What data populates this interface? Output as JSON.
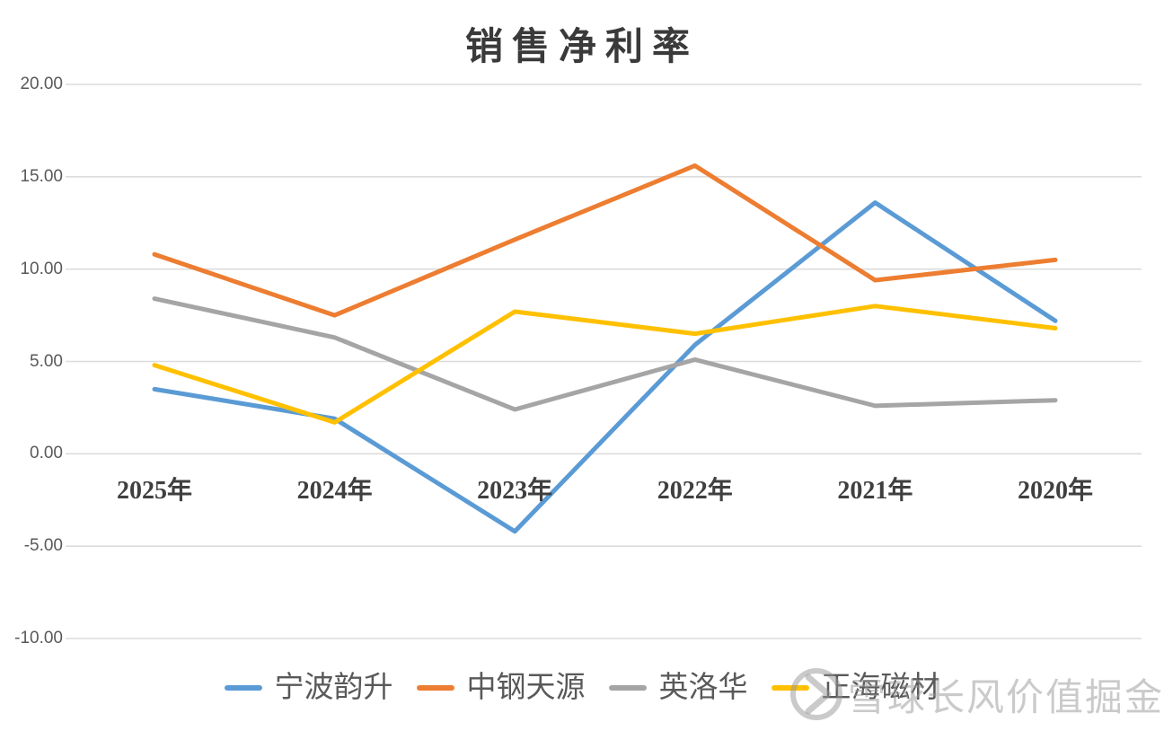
{
  "title": "销售净利率",
  "chart_data": {
    "type": "line",
    "title": "销售净利率",
    "categories": [
      "2025年",
      "2024年",
      "2023年",
      "2022年",
      "2021年",
      "2020年"
    ],
    "series": [
      {
        "name": "宁波韵升",
        "color": "#5B9BD5",
        "values": [
          3.5,
          1.9,
          -4.2,
          5.9,
          13.6,
          7.2
        ]
      },
      {
        "name": "中钢天源",
        "color": "#ED7D31",
        "values": [
          10.8,
          7.5,
          11.6,
          15.6,
          9.4,
          10.5
        ]
      },
      {
        "name": "英洛华",
        "color": "#A5A5A5",
        "values": [
          8.4,
          6.3,
          2.4,
          5.1,
          2.6,
          2.9
        ]
      },
      {
        "name": "正海磁材",
        "color": "#FFC000",
        "values": [
          4.8,
          1.7,
          7.7,
          6.5,
          8.0,
          6.8
        ]
      }
    ],
    "y_ticks": [
      20,
      15,
      10,
      5,
      0,
      -5,
      -10
    ],
    "y_tick_labels": [
      "20.00",
      "15.00",
      "10.00",
      "5.00",
      "0.00",
      "-5.00",
      "-10.00"
    ],
    "ylim": [
      -10,
      20
    ],
    "grid": true,
    "gridline_color": "#DCDCDC",
    "legend_position": "bottom"
  },
  "watermark": {
    "brand": "雪球",
    "text": "雪球长风价值掘金"
  }
}
